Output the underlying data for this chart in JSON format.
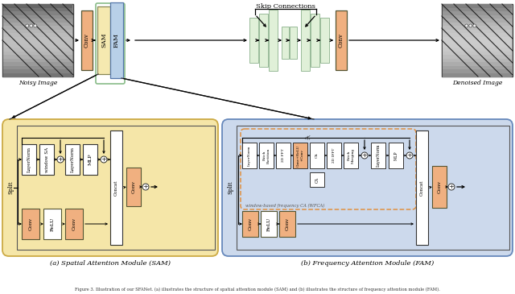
{
  "bg_color": "#ffffff",
  "sam_bg": "#f5e6a8",
  "fam_bg": "#ccd9ec",
  "conv_color": "#f0b080",
  "relu_color": "#f0b080",
  "white_box": "#ffffff",
  "sam_top_color": "#f5e6a8",
  "sam_block_color": "#f5f0d0",
  "fam_block_color": "#b8cfec",
  "enc_color": "#e0f0e0",
  "enc_border": "#a0c8a0",
  "caption_a": "(a) Spatial Attention Module (SAM)",
  "caption_b": "(b) Frequency Attention Module (FAM)",
  "noisy_label": "Noisy Image",
  "denoised_label": "Denoised Image",
  "skip_label": "Skip Connections",
  "wfca_label": "window-based frequency CA (WFCA)"
}
